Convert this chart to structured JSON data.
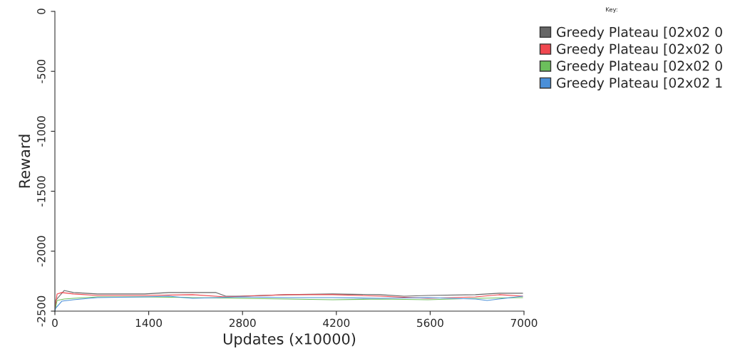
{
  "chart_data": {
    "type": "line",
    "xlabel": "Updates (x10000)",
    "ylabel": "Reward",
    "legend_title": "Key:",
    "legend": "right",
    "xlim": [
      0,
      7000
    ],
    "xticks": [
      0,
      1400,
      2800,
      4200,
      5600,
      7000
    ],
    "ylim": [
      -2500,
      0
    ],
    "yticks": [
      -2500,
      -2000,
      -1500,
      -1000,
      -500,
      0
    ],
    "grid": false,
    "series": [
      {
        "name": "Greedy Plateau [02x02 0",
        "color": "#666666",
        "x": [
          0,
          11,
          138,
          277,
          635,
          1340,
          1700,
          2405,
          2550,
          2763,
          3470,
          4146,
          4852,
          5210,
          5565,
          6275,
          6630,
          6980
        ],
        "values": [
          -2500,
          -2411,
          -2328,
          -2345,
          -2357,
          -2357,
          -2345,
          -2345,
          -2375,
          -2375,
          -2363,
          -2357,
          -2363,
          -2375,
          -2369,
          -2363,
          -2351,
          -2351
        ]
      },
      {
        "name": "Greedy Plateau [02x02 0",
        "color": "#f0474f",
        "x": [
          0,
          32,
          103,
          277,
          635,
          1340,
          2053,
          2550,
          3117,
          3470,
          4146,
          4852,
          5565,
          6275,
          6630,
          6980
        ],
        "values": [
          -2500,
          -2357,
          -2345,
          -2357,
          -2369,
          -2369,
          -2363,
          -2381,
          -2369,
          -2363,
          -2363,
          -2375,
          -2393,
          -2381,
          -2363,
          -2375
        ]
      },
      {
        "name": "Greedy Plateau [02x02 0",
        "color": "#6cbf5c",
        "x": [
          0,
          32,
          138,
          277,
          635,
          1340,
          2053,
          2763,
          3470,
          4146,
          4852,
          5565,
          6275,
          6980
        ],
        "values": [
          -2500,
          -2411,
          -2399,
          -2393,
          -2381,
          -2381,
          -2387,
          -2393,
          -2399,
          -2405,
          -2399,
          -2405,
          -2393,
          -2387
        ]
      },
      {
        "name": "Greedy Plateau [02x02 1",
        "color": "#4a8fd8",
        "x": [
          0,
          11,
          103,
          277,
          635,
          1340,
          1700,
          2053,
          2763,
          3470,
          4146,
          4852,
          5565,
          6275,
          6450,
          6980
        ],
        "values": [
          -2500,
          -2476,
          -2417,
          -2405,
          -2387,
          -2381,
          -2375,
          -2393,
          -2381,
          -2387,
          -2387,
          -2393,
          -2387,
          -2399,
          -2411,
          -2375
        ]
      }
    ]
  }
}
